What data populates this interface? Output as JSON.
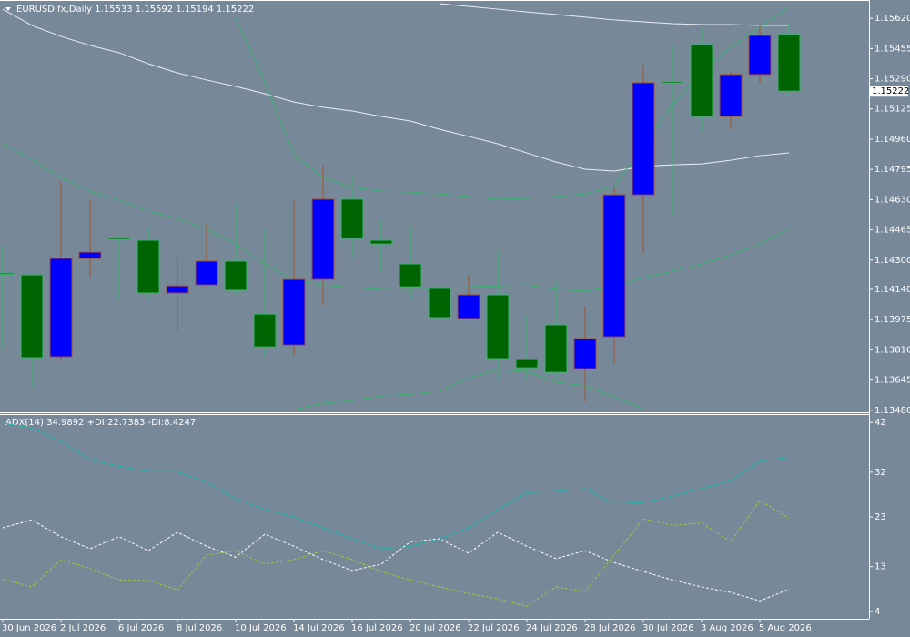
{
  "chart_data": [
    {
      "type": "candlestick",
      "title": "EURUSD.fx,Daily",
      "categories": [
        "30 Jun 2026",
        null,
        "2 Jul 2026",
        null,
        "6 Jul 2026",
        null,
        "8 Jul 2026",
        null,
        "10 Jul 2026",
        null,
        "14 Jul 2026",
        null,
        "16 Jul 2026",
        null,
        "20 Jul 2026",
        null,
        "22 Jul 2026",
        null,
        "24 Jul 2026",
        null,
        "28 Jul 2026",
        null,
        "30 Jul 2026",
        null,
        "3 Aug 2026",
        null,
        "5 Aug 2026",
        null
      ],
      "open": [
        1.14229,
        1.14219,
        1.13772,
        1.14309,
        1.14418,
        1.14408,
        1.1412,
        1.14164,
        1.14294,
        1.14005,
        1.13836,
        1.14194,
        1.14632,
        1.14408,
        1.14279,
        1.14145,
        1.13981,
        1.1411,
        1.13757,
        1.13946,
        1.13707,
        1.13881,
        1.14656,
        1.15273,
        1.15477,
        1.15084,
        1.15313,
        1.15533
      ],
      "high": [
        1.14378,
        1.14229,
        1.14726,
        1.14627,
        1.14438,
        1.14478,
        1.14314,
        1.14497,
        1.14607,
        1.14468,
        1.14627,
        1.1482,
        1.14761,
        1.14517,
        1.14487,
        1.14279,
        1.14219,
        1.14353,
        1.14,
        1.14179,
        1.1405,
        1.14701,
        1.15367,
        1.15472,
        1.15571,
        1.15332,
        1.15581,
        1.15592
      ],
      "low": [
        1.13817,
        1.13608,
        1.13747,
        1.14204,
        1.1408,
        1.1408,
        1.13906,
        1.1415,
        1.14105,
        1.13772,
        1.13782,
        1.14055,
        1.14309,
        1.14239,
        1.1408,
        1.13981,
        1.13976,
        1.13643,
        1.13643,
        1.13643,
        1.13528,
        1.13737,
        1.14338,
        1.14547,
        1.15004,
        1.15014,
        1.15268,
        1.15194
      ],
      "close": [
        1.14229,
        1.13767,
        1.14309,
        1.14343,
        1.14413,
        1.1412,
        1.14159,
        1.14294,
        1.14135,
        1.13826,
        1.14194,
        1.14632,
        1.14418,
        1.14388,
        1.14154,
        1.13986,
        1.1411,
        1.13762,
        1.13712,
        1.13687,
        1.13871,
        1.14656,
        1.15268,
        1.15268,
        1.15084,
        1.15313,
        1.15526,
        1.15222
      ],
      "bull_color": "#0000ff",
      "bull_wick": "#a0522d",
      "bear_color": "#006400",
      "bear_wick": "#3cb371",
      "overlays": [
        {
          "color": "#e8eef5",
          "values": [
            1.1567,
            1.15581,
            1.15521,
            1.15472,
            1.15432,
            1.15372,
            1.15322,
            1.15283,
            1.15248,
            1.15208,
            1.15163,
            1.15134,
            1.15114,
            1.15084,
            1.15059,
            1.15014,
            1.14975,
            1.14935,
            1.14885,
            1.14835,
            1.14796,
            1.14786,
            1.14811,
            1.1482,
            1.14825,
            1.14845,
            1.1487,
            1.14885
          ]
        },
        {
          "color": "#e8eef5",
          "values": [
            null,
            null,
            null,
            null,
            null,
            null,
            null,
            null,
            null,
            null,
            null,
            null,
            null,
            null,
            null,
            1.157,
            1.15685,
            1.1567,
            1.15655,
            1.15641,
            1.15626,
            1.15611,
            1.15601,
            1.15591,
            1.15586,
            1.15586,
            1.15581,
            1.15581
          ]
        },
        {
          "color": "#3cb371",
          "values": [
            null,
            null,
            null,
            null,
            null,
            null,
            null,
            null,
            1.15621,
            1.15273,
            1.14875,
            1.14751,
            1.14696,
            1.14676,
            1.14671,
            1.14661,
            1.14647,
            1.14632,
            1.14637,
            1.14647,
            1.14661,
            1.14701,
            1.14925,
            1.15148,
            1.15322,
            1.15462,
            1.15571,
            1.1568
          ]
        },
        {
          "color": "#3cb371",
          "values": [
            1.14935,
            1.1485,
            1.14751,
            1.14676,
            1.14627,
            1.14567,
            1.14527,
            1.14468,
            1.14388,
            1.14279,
            1.14189,
            1.14164,
            1.1415,
            1.1414,
            1.14135,
            1.14145,
            1.14154,
            1.14159,
            1.14164,
            1.1414,
            1.1413,
            1.14159,
            1.14204,
            1.14239,
            1.14279,
            1.14328,
            1.14388,
            1.14468
          ]
        },
        {
          "color": "#3cb371",
          "values": [
            null,
            null,
            null,
            null,
            null,
            null,
            null,
            null,
            null,
            null,
            1.13484,
            1.13518,
            1.13533,
            1.13558,
            1.13568,
            1.13583,
            1.13657,
            1.13702,
            1.13692,
            1.13633,
            1.13613,
            1.13553,
            1.13489,
            null,
            null,
            null,
            null,
            null
          ]
        }
      ],
      "ylim": [
        1.13474,
        1.1572
      ],
      "yticks": [
        {
          "value": 1.1562,
          "label": "1.15620"
        },
        1.15455,
        {
          "value": 1.1529,
          "label": "1.15290"
        },
        1.15125,
        {
          "value": 1.1496,
          "label": "1.14960"
        },
        1.14795,
        {
          "value": 1.1463,
          "label": "1.14630"
        },
        1.14465,
        {
          "value": 1.143,
          "label": "1.14300"
        },
        {
          "value": 1.1414,
          "label": "1.14140"
        },
        1.13975,
        {
          "value": 1.1381,
          "label": "1.13810"
        },
        1.13645,
        {
          "value": 1.1348,
          "label": "1.13480"
        }
      ]
    },
    {
      "type": "line",
      "series": [
        {
          "name": "ADX(14)",
          "color": "#20b2aa",
          "dash": false,
          "values": [
            41.9,
            40.9,
            38.2,
            34.5,
            33.2,
            32.1,
            32.1,
            30.0,
            26.7,
            24.5,
            23.0,
            20.8,
            18.6,
            16.6,
            17.1,
            18.6,
            20.8,
            24.5,
            27.9,
            28.1,
            28.7,
            25.6,
            25.9,
            27.2,
            28.7,
            30.3,
            34.2,
            34.9892
          ]
        },
        {
          "name": "+DI:",
          "color": "#9acd32",
          "dash": true,
          "values": [
            10.5,
            8.9,
            14.4,
            12.6,
            10.3,
            10.2,
            8.3,
            15.3,
            16.2,
            13.5,
            14.4,
            16.2,
            14.4,
            12.0,
            10.3,
            8.9,
            7.6,
            6.5,
            5.0,
            8.9,
            8.0,
            15.3,
            22.6,
            21.3,
            21.8,
            18.0,
            26.3,
            22.7383
          ]
        },
        {
          "name": "-DI:",
          "color": "#ffffff",
          "dash": true,
          "values": [
            20.8,
            22.4,
            19.0,
            16.6,
            19.0,
            16.2,
            19.9,
            17.1,
            14.9,
            19.5,
            17.1,
            14.4,
            12.2,
            13.5,
            18.0,
            18.6,
            15.7,
            19.9,
            17.1,
            14.6,
            16.2,
            13.8,
            12.0,
            10.3,
            8.9,
            7.8,
            6.1,
            8.4247
          ]
        }
      ],
      "ylim": [
        2.5,
        43.5
      ],
      "yticks": [
        42,
        32,
        23,
        13,
        4
      ]
    }
  ]
}
